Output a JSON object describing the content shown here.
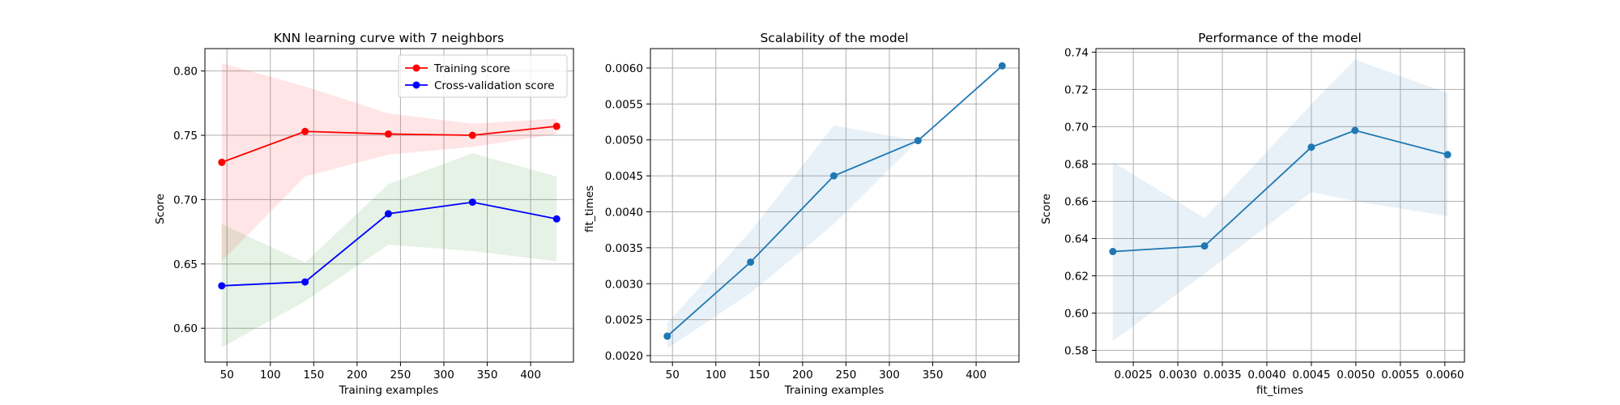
{
  "chart_data": [
    {
      "type": "line",
      "title": "KNN learning curve with 7 neighbors",
      "xlabel": "Training examples",
      "ylabel": "Score",
      "xlim": [
        24.6,
        449.4
      ],
      "ylim": [
        0.5737,
        0.8174
      ],
      "xticks": [
        50,
        100,
        150,
        200,
        250,
        300,
        350,
        400
      ],
      "yticks": [
        0.6,
        0.65,
        0.7,
        0.75,
        0.8
      ],
      "grid": true,
      "legend": "top-right",
      "x": [
        44,
        140,
        236,
        333,
        430
      ],
      "series": [
        {
          "name": "Training score",
          "color": "#ff0000",
          "values": [
            0.729,
            0.753,
            0.751,
            0.75,
            0.757
          ],
          "band_lower": [
            0.652,
            0.718,
            0.735,
            0.741,
            0.751
          ],
          "band_upper": [
            0.806,
            0.788,
            0.767,
            0.759,
            0.763
          ],
          "band_color": "#ff0000"
        },
        {
          "name": "Cross-validation score",
          "color": "#0000ff",
          "values": [
            0.633,
            0.636,
            0.689,
            0.698,
            0.685
          ],
          "band_lower": [
            0.585,
            0.621,
            0.665,
            0.66,
            0.652
          ],
          "band_upper": [
            0.681,
            0.651,
            0.712,
            0.736,
            0.718
          ],
          "band_color": "#008000"
        }
      ]
    },
    {
      "type": "line",
      "title": "Scalability of the model",
      "xlabel": "Training examples",
      "ylabel": "fit_times",
      "xlim": [
        24.6,
        449.4
      ],
      "ylim": [
        0.00191,
        0.00627
      ],
      "xticks": [
        50,
        100,
        150,
        200,
        250,
        300,
        350,
        400
      ],
      "yticks": [
        0.002,
        0.0025,
        0.003,
        0.0035,
        0.004,
        0.0045,
        0.005,
        0.0055,
        0.006
      ],
      "ytick_decimals": 4,
      "grid": true,
      "x": [
        44,
        140,
        236,
        333,
        430
      ],
      "series": [
        {
          "color": "#1f77b4",
          "values": [
            0.00227,
            0.0033,
            0.0045,
            0.00499,
            0.00603
          ],
          "band_lower": [
            0.0021,
            0.00287,
            0.00383,
            0.00499,
            0.00603
          ],
          "band_upper": [
            0.00245,
            0.00373,
            0.0052,
            0.00499,
            0.00603
          ],
          "band_color": "#1f77b4"
        }
      ]
    },
    {
      "type": "line",
      "title": "Performance of the model",
      "xlabel": "fit_times",
      "ylabel": "Score",
      "xlim": [
        0.00208,
        0.00622
      ],
      "ylim": [
        0.5737,
        0.7419
      ],
      "xticks": [
        0.0025,
        0.003,
        0.0035,
        0.004,
        0.0045,
        0.005,
        0.0055,
        0.006
      ],
      "xtick_decimals": 4,
      "yticks": [
        0.58,
        0.6,
        0.62,
        0.64,
        0.66,
        0.68,
        0.7,
        0.72,
        0.74
      ],
      "ytick_decimals": 2,
      "grid": true,
      "x": [
        0.00227,
        0.0033,
        0.0045,
        0.00499,
        0.00603
      ],
      "series": [
        {
          "color": "#1f77b4",
          "values": [
            0.633,
            0.636,
            0.689,
            0.698,
            0.685
          ],
          "band_lower": [
            0.585,
            0.621,
            0.665,
            0.66,
            0.652
          ],
          "band_upper": [
            0.681,
            0.651,
            0.712,
            0.736,
            0.718
          ],
          "band_color": "#1f77b4"
        }
      ]
    }
  ]
}
